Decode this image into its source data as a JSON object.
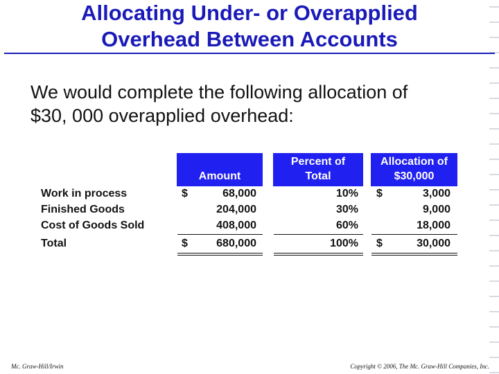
{
  "slide": {
    "title_line1": "Allocating Under- or Overapplied",
    "title_line2": "Overhead Between Accounts",
    "body_line1": "We would complete the following allocation of",
    "body_line2": "$30, 000 overapplied overhead:"
  },
  "table": {
    "headers": {
      "amount": [
        "",
        "Amount"
      ],
      "percent": [
        "Percent of",
        "Total"
      ],
      "allocation": [
        "Allocation of",
        "$30,000"
      ]
    },
    "currency_symbol": "$",
    "rows": [
      {
        "label": "Work in process",
        "amount": "68,000",
        "percent": "10%",
        "allocation": "3,000"
      },
      {
        "label": "Finished Goods",
        "amount": "204,000",
        "percent": "30%",
        "allocation": "9,000"
      },
      {
        "label": "Cost of Goods Sold",
        "amount": "408,000",
        "percent": "60%",
        "allocation": "18,000"
      }
    ],
    "total": {
      "label": "Total",
      "amount": "680,000",
      "percent": "100%",
      "allocation": "30,000"
    }
  },
  "footer": {
    "left": "Mc. Graw-Hill/Irwin",
    "right": "Copyright © 2006, The Mc. Graw-Hill Companies, Inc."
  },
  "colors": {
    "title": "#1a1ab8",
    "header_fill": "#2020f0",
    "header_text": "#ffffff"
  }
}
